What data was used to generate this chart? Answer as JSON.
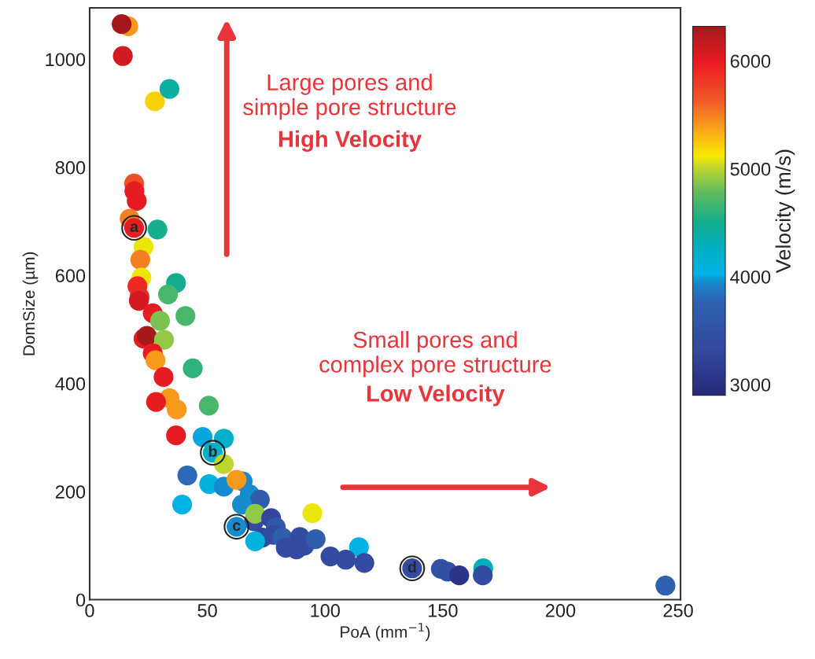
{
  "chart_data": {
    "type": "scatter",
    "xlabel": "PoA (mm$^{−1}$)",
    "ylabel": "DomSize (µm)",
    "clabel": "Velocity (m/s)",
    "xlim": [
      0,
      251
    ],
    "ylim": [
      0,
      1095
    ],
    "xticks": [
      0,
      50,
      100,
      150,
      200,
      250
    ],
    "yticks": [
      0,
      200,
      400,
      600,
      800,
      1000
    ],
    "clim": [
      2900,
      6320
    ],
    "cticks": [
      3000,
      {
        "value": 3500,
        "label": null
      },
      4000,
      {
        "value": 4500,
        "label": null
      },
      5000,
      {
        "value": 5500,
        "label": null
      },
      6000
    ],
    "grid": false,
    "marker": "circle",
    "series": [
      {
        "x": [
          16.4,
          13.6,
          14.1,
          27.7,
          33.9,
          18.9,
          19,
          20,
          17,
          18.9,
          28.8,
          22.9,
          21.5,
          22,
          20.3,
          21.2,
          20.9,
          36.7,
          33.3,
          26.8,
          29.9,
          40.7,
          22.9,
          24.3,
          31.6,
          26.8,
          28,
          43.8,
          31.4,
          33.9,
          37,
          28.2,
          50.6,
          36.7,
          48,
          57,
          52.3,
          57,
          41.5,
          50.8,
          57,
          65,
          62.4,
          68,
          72.3,
          39.3,
          64.7,
          69.8,
          70.3,
          77.1,
          62.4,
          79.1,
          94.6,
          73.4,
          78,
          70.3,
          81.9,
          89.3,
          83.3,
          87.9,
          91.2,
          96,
          114.4,
          102.3,
          108.8,
          116.7,
          137,
          149.2,
          152,
          157,
          167.2,
          167,
          244.6
        ],
        "values": [
          1061,
          1065,
          1006,
          922,
          945,
          770,
          756,
          738,
          705,
          688,
          685,
          653,
          629,
          596,
          580,
          560,
          553,
          586,
          565,
          530,
          516,
          525,
          483,
          488,
          481,
          456,
          443,
          428,
          412,
          373,
          352,
          366,
          359,
          304,
          301,
          298,
          272,
          251,
          230,
          214,
          209,
          219,
          222,
          195,
          185,
          176,
          176,
          145,
          159,
          151,
          135,
          134,
          160,
          115,
          120,
          108,
          115,
          116,
          96,
          93,
          100,
          112,
          97,
          80,
          74,
          68,
          58,
          57,
          52,
          45,
          58,
          45,
          26
        ],
        "cvalues": [
          5400,
          6300,
          6100,
          5200,
          4400,
          5700,
          6000,
          6000,
          5500,
          6000,
          4500,
          5100,
          5500,
          5100,
          5900,
          5900,
          6100,
          4500,
          4700,
          6000,
          4850,
          4700,
          6000,
          6300,
          4900,
          6000,
          5400,
          4600,
          6000,
          5400,
          5400,
          6000,
          4700,
          6000,
          4000,
          4200,
          4200,
          5000,
          3800,
          4100,
          3950,
          3950,
          5400,
          3950,
          3700,
          4050,
          3950,
          3400,
          4900,
          3300,
          3950,
          3600,
          5100,
          3300,
          3400,
          4100,
          3700,
          3400,
          3400,
          3400,
          3400,
          3700,
          4050,
          3400,
          3400,
          3400,
          3400,
          3500,
          3450,
          3050,
          4300,
          3400,
          3750
        ]
      }
    ],
    "annotations": [
      {
        "text": "a",
        "x": 18.9,
        "y": 688
      },
      {
        "text": "b",
        "x": 52.3,
        "y": 272
      },
      {
        "text": "c",
        "x": 62.4,
        "y": 135
      },
      {
        "text": "d",
        "x": 137,
        "y": 58
      },
      "Large pores and\nsimple pore structure",
      "High Velocity",
      "Small pores and\ncomplex pore structure",
      "Low Velocity"
    ]
  }
}
